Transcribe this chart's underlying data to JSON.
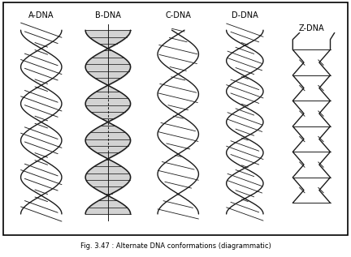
{
  "title": "Fig. 3.47 : Alternate DNA conformations (diagrammatic)",
  "labels": [
    "A-DNA",
    "B-DNA",
    "C-DNA",
    "D-DNA",
    "Z-DNA"
  ],
  "line_color": "#1a1a1a",
  "figure_width": 4.32,
  "figure_height": 3.17,
  "dpi": 100
}
